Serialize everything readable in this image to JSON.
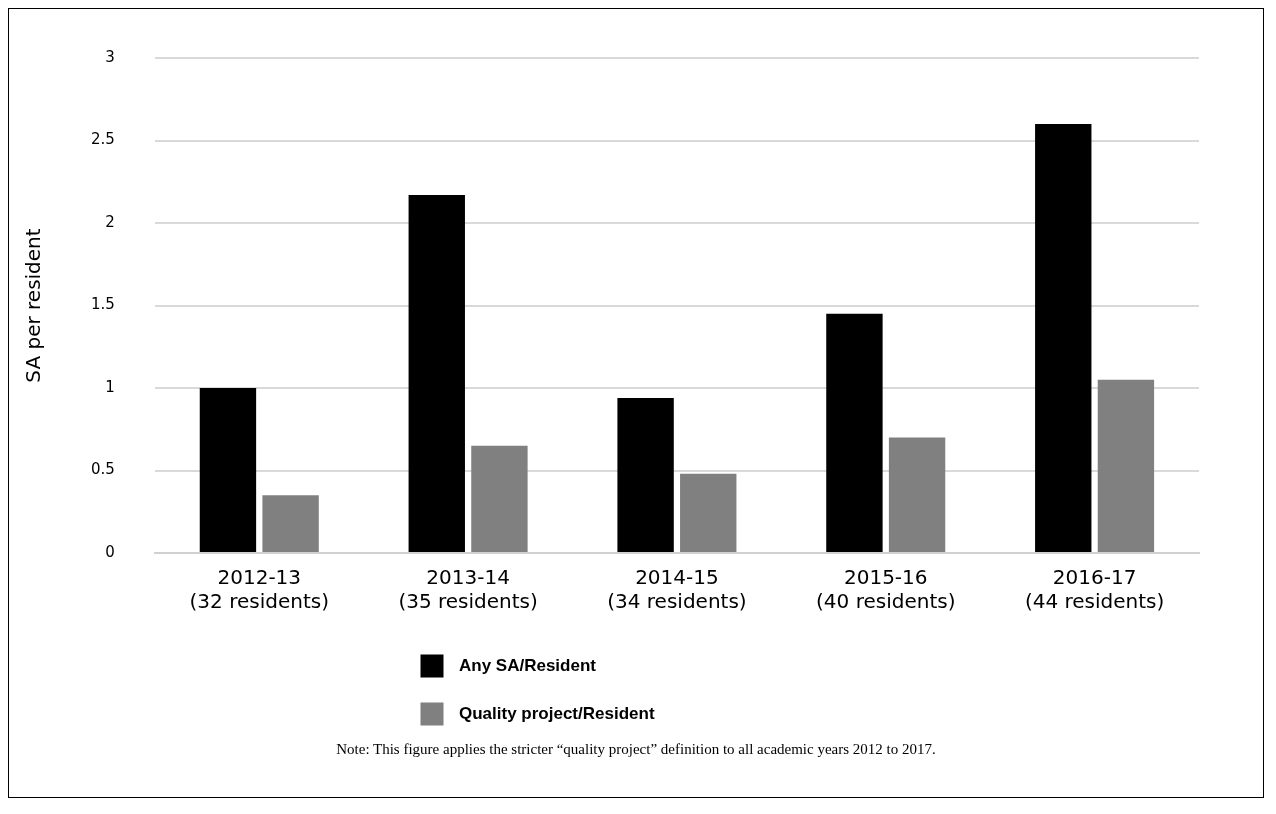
{
  "chart_data": {
    "type": "bar",
    "categories": [
      "2012-13\n(32 residents)",
      "2013-14\n(35 residents)",
      "2014-15\n(34 residents)",
      "2015-16\n(40 residents)",
      "2016-17\n(44 residents)"
    ],
    "series": [
      {
        "name": "Any SA/Resident",
        "color": "#000000",
        "values": [
          1.0,
          2.17,
          0.94,
          1.45,
          2.6
        ]
      },
      {
        "name": "Quality project/Resident",
        "color": "#808080",
        "values": [
          0.35,
          0.65,
          0.48,
          0.7,
          1.05
        ]
      }
    ],
    "ylabel": "SA per resident",
    "ylim": [
      0,
      3
    ],
    "yticks": [
      0,
      0.5,
      1,
      1.5,
      2,
      2.5,
      3
    ],
    "grid": "y",
    "legend": "bottom",
    "annotations": [
      "Note: This figure applies the stricter “quality project” definition to all academic years 2012 to 2017."
    ]
  }
}
